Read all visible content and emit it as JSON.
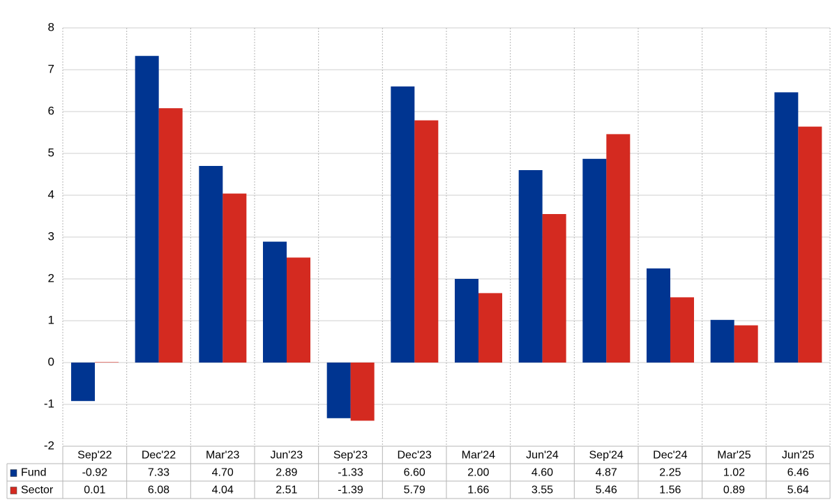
{
  "chart_data": {
    "type": "bar",
    "categories": [
      "Sep'22",
      "Dec'22",
      "Mar'23",
      "Jun'23",
      "Sep'23",
      "Dec'23",
      "Mar'24",
      "Jun'24",
      "Sep'24",
      "Dec'24",
      "Mar'25",
      "Jun'25"
    ],
    "series": [
      {
        "name": "Fund",
        "color": "#003591",
        "values": [
          -0.92,
          7.33,
          4.7,
          2.89,
          -1.33,
          6.6,
          2.0,
          4.6,
          4.87,
          2.25,
          1.02,
          6.46
        ],
        "value_labels": [
          "-0.92",
          "7.33",
          "4.70",
          "2.89",
          "-1.33",
          "6.60",
          "2.00",
          "4.60",
          "4.87",
          "2.25",
          "1.02",
          "6.46"
        ]
      },
      {
        "name": "Sector",
        "color": "#d42a20",
        "values": [
          0.01,
          6.08,
          4.04,
          2.51,
          -1.39,
          5.79,
          1.66,
          3.55,
          5.46,
          1.56,
          0.89,
          5.64
        ],
        "value_labels": [
          "0.01",
          "6.08",
          "4.04",
          "2.51",
          "-1.39",
          "5.79",
          "1.66",
          "3.55",
          "5.46",
          "1.56",
          "0.89",
          "5.64"
        ]
      }
    ],
    "ylim": [
      -2,
      8
    ],
    "yticks": [
      -2,
      -1,
      0,
      1,
      2,
      3,
      4,
      5,
      6,
      7,
      8
    ],
    "grid": true
  }
}
